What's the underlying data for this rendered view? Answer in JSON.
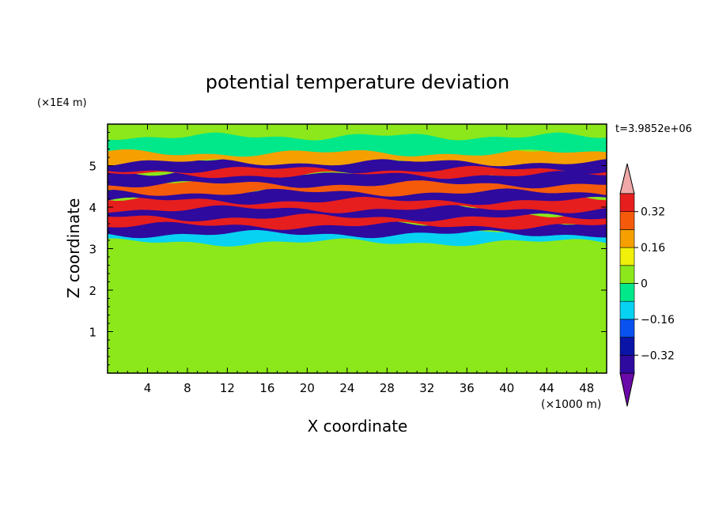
{
  "chart_data": {
    "type": "heatmap",
    "title": "potential temperature deviation",
    "time_label": "t=3.9852e+06",
    "xlabel": "X coordinate",
    "ylabel": "Z coordinate",
    "x_unit": "(×1000 m)",
    "y_unit": "(×1E4 m)",
    "xlim": [
      0,
      50
    ],
    "ylim": [
      0,
      6
    ],
    "x_ticks": [
      "4",
      "8",
      "12",
      "16",
      "20",
      "24",
      "28",
      "32",
      "36",
      "40",
      "44",
      "48"
    ],
    "y_ticks": [
      "1",
      "2",
      "3",
      "4",
      "5"
    ],
    "colorbar": {
      "levels": [
        -0.4,
        -0.32,
        -0.24,
        -0.16,
        -0.08,
        0,
        0.08,
        0.16,
        0.24,
        0.32,
        0.4
      ],
      "labels": [
        "0.32",
        "0.16",
        "0",
        "−0.16",
        "−0.32"
      ],
      "colors": [
        "#6a0aa8",
        "#2e0a9e",
        "#0a14a6",
        "#0a52f0",
        "#08d2f2",
        "#00e88a",
        "#8ce81a",
        "#f0f00a",
        "#f5a000",
        "#f55a0a",
        "#e61e1e",
        "#f0a8a8"
      ],
      "extend": "both"
    },
    "bands": [
      {
        "z": 0.3,
        "value": 0.02
      },
      {
        "z": 0.95,
        "value": 0.05
      },
      {
        "z": 1.5,
        "value": 0.04
      },
      {
        "z": 2.0,
        "value": 0.03
      },
      {
        "z": 2.5,
        "value": 0.01
      },
      {
        "z": 3.0,
        "value": 0.06
      },
      {
        "z": 3.3,
        "value": -0.15
      },
      {
        "z": 3.5,
        "value": -0.35
      },
      {
        "z": 3.7,
        "value": 0.36
      },
      {
        "z": 3.9,
        "value": -0.38
      },
      {
        "z": 4.1,
        "value": 0.38
      },
      {
        "z": 4.3,
        "value": -0.36
      },
      {
        "z": 4.5,
        "value": 0.3
      },
      {
        "z": 4.7,
        "value": -0.38
      },
      {
        "z": 4.9,
        "value": 0.36
      },
      {
        "z": 5.05,
        "value": -0.36
      },
      {
        "z": 5.25,
        "value": 0.2
      },
      {
        "z": 5.5,
        "value": -0.03
      }
    ]
  }
}
